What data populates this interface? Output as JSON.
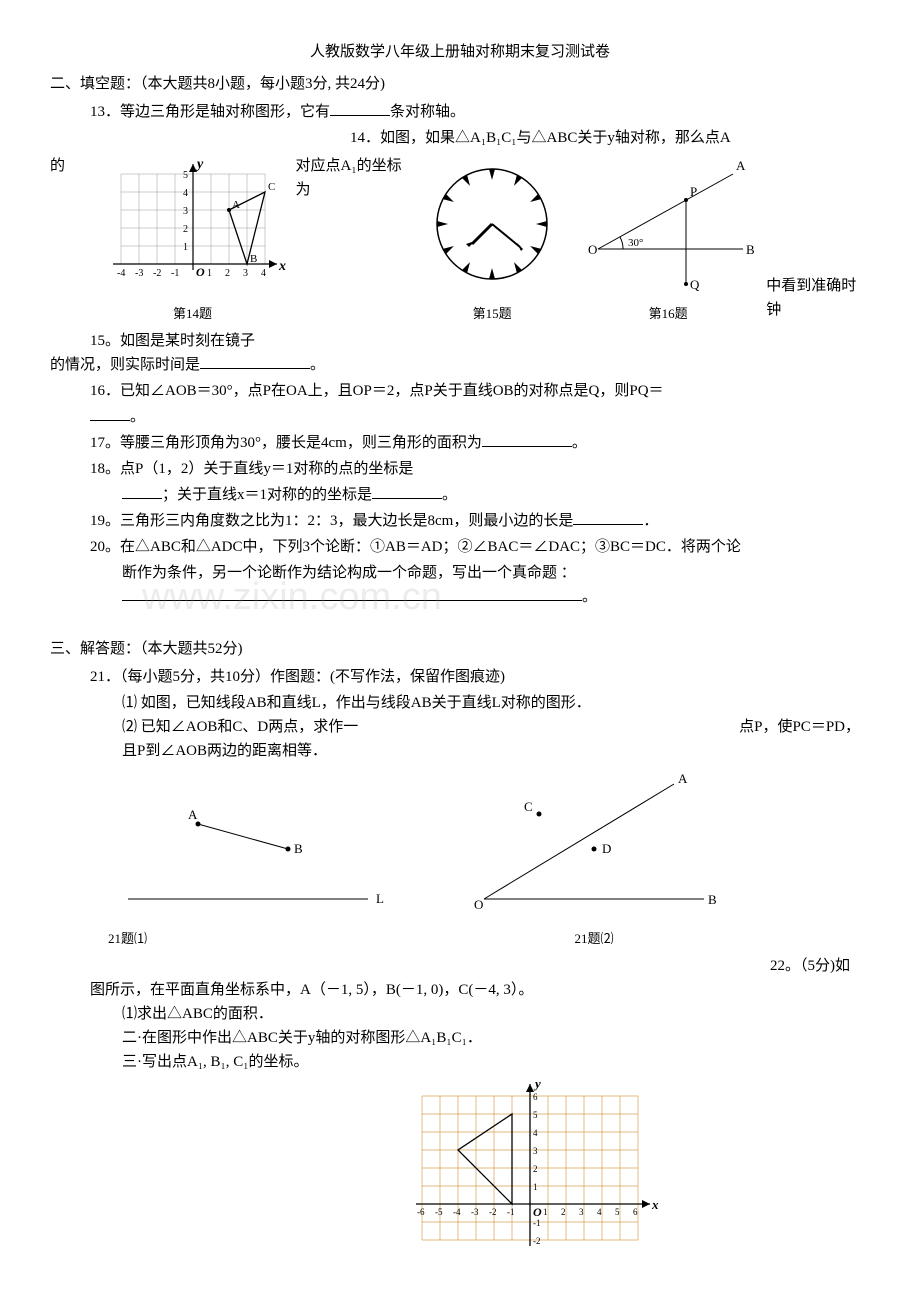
{
  "title": "人教版数学八年级上册轴对称期末复习测试卷",
  "section2": {
    "header": "二、填空题：（本大题共8小题，每小题3分, 共24分)",
    "q13": "13．等边三角形是轴对称图形，它有",
    "q13_tail": "条对称轴。",
    "q14_a": "14．如图，如果△A₁B₁C₁与△ABC关于y轴对称，那么点A",
    "q14_b": "的",
    "q14_c": "对应点A₁的坐标为",
    "q15_a": "15。如图是某时刻在镜子",
    "q15_b": "中看到准确时钟",
    "q15_c": "的情况，则实际时间是",
    "q16": "16．已知∠AOB＝30°，点P在OA上，且OP＝2，点P关于直线OB的对称点是Q，则PQ＝",
    "q17": "17。等腰三角形顶角为30°，腰长是4cm，则三角形的面积为",
    "q18_a": "18。点P（1，2）关于直线y＝1对称的点的坐标是",
    "q18_b": "；关于直线x＝1对称的的坐标是",
    "q19": "19。三角形三内角度数之比为1：2：3，最大边长是8cm，则最小边的长是",
    "q20_a": "20。在△ABC和△ADC中，下列3个论断：①AB＝AD；②∠BAC＝∠DAC；③BC＝DC．将两个论",
    "q20_b": "断作为条件，另一个论断作为结论构成一个命题，写出一个真命题 ："
  },
  "section3": {
    "header": "三、解答题：（本大题共52分)",
    "q21": "21．（每小题5分，共10分）作图题：(不写作法，保留作图痕迹)",
    "q21_1": "⑴ 如图，已知线段AB和直线L，作出与线段AB关于直线L对称的图形．",
    "q21_2a": "⑵ 已知∠AOB和C、D两点，求作一",
    "q21_2b": "点P，使PC＝PD，",
    "q21_2c": "且P到∠AOB两边的距离相等．",
    "q22_a": "22。（5分)如",
    "q22_b": "图所示，在平面直角坐标系中，A（－1, 5），B(－1, 0)，C(－4, 3）。",
    "q22_1": "⑴求出△ABC的面积．",
    "q22_2": "二·在图形中作出△ABC关于y轴的对称图形△A₁B₁C₁．",
    "q22_3": "三·写出点A₁, B₁, C₁的坐标。"
  },
  "figures": {
    "f14": {
      "label": "第14题",
      "axis_x": "x",
      "axis_y": "y",
      "xticks": [
        "-4",
        "-3",
        "-2",
        "-1",
        "1",
        "2",
        "3",
        "4"
      ],
      "yticks": [
        "1",
        "2",
        "3",
        "4",
        "5"
      ],
      "origin": "O",
      "pts": {
        "A": "A",
        "B": "B",
        "C": "C"
      },
      "grid_color": "#999",
      "axis_color": "#000",
      "cell": 18
    },
    "f15": {
      "label": "第15题",
      "stroke": "#000"
    },
    "f16": {
      "label": "第16题",
      "O": "O",
      "A": "A",
      "B": "B",
      "P": "P",
      "Q": "Q",
      "angle": "30°"
    },
    "f21_1": {
      "label": "21题⑴",
      "A": "A",
      "B": "B",
      "L": "L"
    },
    "f21_2": {
      "label": "21题⑵",
      "O": "O",
      "A": "A",
      "B": "B",
      "C": "C",
      "D": "D"
    },
    "f22": {
      "axis_x": "x",
      "axis_y": "y",
      "origin": "O",
      "xticks": [
        "-6",
        "-5",
        "-4",
        "-3",
        "-2",
        "-1",
        "1",
        "2",
        "3",
        "4",
        "5",
        "6"
      ],
      "yticks_pos": [
        "1",
        "2",
        "3",
        "4",
        "5",
        "6"
      ],
      "yticks_neg": [
        "-1",
        "-2"
      ],
      "grid_color": "#d8a050",
      "axis_color": "#000",
      "cell": 18
    }
  },
  "watermark": "www.zixin.com.cn"
}
